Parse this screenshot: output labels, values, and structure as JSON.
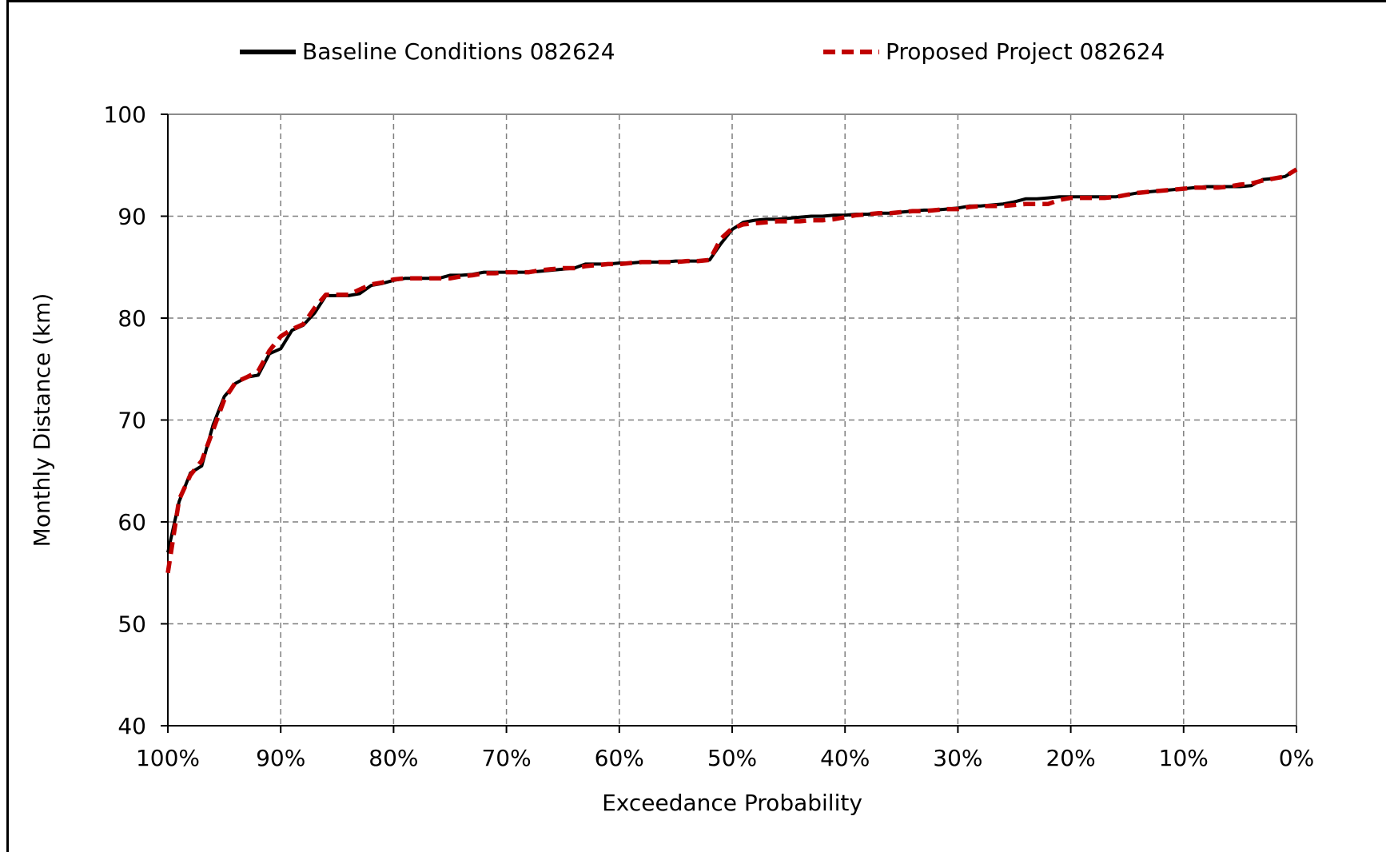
{
  "chart_data": {
    "type": "line",
    "title": "",
    "xlabel": "Exceedance Probability",
    "ylabel": "Monthly Distance (km)",
    "xlim": [
      100,
      0
    ],
    "ylim": [
      40,
      100
    ],
    "x_reversed": true,
    "grid": true,
    "legend_position": "top",
    "xticks": [
      100,
      90,
      80,
      70,
      60,
      50,
      40,
      30,
      20,
      10,
      0
    ],
    "xtick_labels": [
      "100%",
      "90%",
      "80%",
      "70%",
      "60%",
      "50%",
      "40%",
      "30%",
      "20%",
      "10%",
      "0%"
    ],
    "yticks": [
      40,
      50,
      60,
      70,
      80,
      90,
      100
    ],
    "ytick_labels": [
      "40",
      "50",
      "60",
      "70",
      "80",
      "90",
      "100"
    ],
    "series": [
      {
        "name": "Baseline Conditions 082624",
        "color": "#000000",
        "style": "solid",
        "x": [
          100,
          99,
          98,
          97,
          96,
          95,
          94,
          93,
          92,
          91,
          90,
          89,
          88,
          87,
          86,
          85,
          84,
          83,
          82,
          81,
          80,
          79,
          78,
          77,
          76,
          75,
          74,
          73,
          72,
          71,
          70,
          69,
          68,
          67,
          66,
          65,
          64,
          63,
          62,
          61,
          60,
          59,
          58,
          57,
          56,
          55,
          54,
          53,
          52,
          51,
          50,
          49,
          48,
          47,
          46,
          45,
          44,
          43,
          42,
          41,
          40,
          39,
          38,
          37,
          36,
          35,
          34,
          33,
          32,
          31,
          30,
          29,
          28,
          27,
          26,
          25,
          24,
          23,
          22,
          21,
          20,
          19,
          18,
          17,
          16,
          15,
          14,
          13,
          12,
          11,
          10,
          9,
          8,
          7,
          6,
          5,
          4,
          3,
          2,
          1,
          0
        ],
        "y": [
          57.0,
          62.0,
          64.8,
          65.5,
          69.5,
          72.3,
          73.6,
          74.2,
          74.4,
          76.5,
          77.0,
          78.8,
          79.3,
          80.5,
          82.2,
          82.2,
          82.2,
          82.4,
          83.2,
          83.4,
          83.7,
          83.9,
          83.9,
          83.9,
          83.9,
          84.2,
          84.2,
          84.3,
          84.5,
          84.5,
          84.5,
          84.5,
          84.5,
          84.6,
          84.7,
          84.8,
          84.9,
          85.3,
          85.3,
          85.3,
          85.4,
          85.4,
          85.5,
          85.5,
          85.5,
          85.6,
          85.6,
          85.6,
          85.7,
          87.3,
          88.7,
          89.4,
          89.6,
          89.7,
          89.7,
          89.8,
          89.9,
          90.0,
          90.0,
          90.1,
          90.1,
          90.2,
          90.2,
          90.3,
          90.3,
          90.4,
          90.5,
          90.6,
          90.6,
          90.7,
          90.8,
          91.0,
          91.0,
          91.1,
          91.2,
          91.4,
          91.7,
          91.7,
          91.8,
          91.9,
          91.9,
          91.9,
          91.9,
          91.9,
          91.9,
          92.1,
          92.3,
          92.4,
          92.5,
          92.6,
          92.7,
          92.8,
          92.9,
          92.9,
          92.9,
          92.9,
          93.0,
          93.6,
          93.7,
          93.9,
          94.6
        ]
      },
      {
        "name": "Proposed Project 082624",
        "color": "#c00000",
        "style": "dashed",
        "x": [
          100,
          99,
          98,
          97,
          96,
          95,
          94,
          93,
          92,
          91,
          90,
          89,
          88,
          87,
          86,
          85,
          84,
          83,
          82,
          81,
          80,
          79,
          78,
          77,
          76,
          75,
          74,
          73,
          72,
          71,
          70,
          69,
          68,
          67,
          66,
          65,
          64,
          63,
          62,
          61,
          60,
          59,
          58,
          57,
          56,
          55,
          54,
          53,
          52,
          51,
          50,
          49,
          48,
          47,
          46,
          45,
          44,
          43,
          42,
          41,
          40,
          39,
          38,
          37,
          36,
          35,
          34,
          33,
          32,
          31,
          30,
          29,
          28,
          27,
          26,
          25,
          24,
          23,
          22,
          21,
          20,
          19,
          18,
          17,
          16,
          15,
          14,
          13,
          12,
          11,
          10,
          9,
          8,
          7,
          6,
          5,
          4,
          3,
          2,
          1,
          0
        ],
        "y": [
          55.0,
          62.2,
          64.6,
          66.0,
          69.0,
          72.0,
          73.7,
          74.2,
          74.8,
          76.8,
          78.2,
          78.9,
          79.4,
          81.0,
          82.3,
          82.3,
          82.3,
          82.8,
          83.3,
          83.5,
          83.8,
          83.9,
          83.9,
          83.9,
          83.9,
          83.9,
          84.1,
          84.2,
          84.4,
          84.4,
          84.5,
          84.5,
          84.5,
          84.7,
          84.8,
          84.9,
          84.9,
          85.1,
          85.2,
          85.3,
          85.3,
          85.4,
          85.5,
          85.5,
          85.5,
          85.5,
          85.6,
          85.6,
          85.7,
          87.8,
          88.8,
          89.2,
          89.3,
          89.4,
          89.5,
          89.5,
          89.5,
          89.6,
          89.6,
          89.7,
          89.9,
          90.1,
          90.2,
          90.3,
          90.3,
          90.4,
          90.5,
          90.5,
          90.6,
          90.7,
          90.7,
          90.9,
          91.0,
          91.0,
          91.0,
          91.1,
          91.2,
          91.2,
          91.2,
          91.6,
          91.8,
          91.8,
          91.8,
          91.8,
          91.9,
          92.1,
          92.3,
          92.4,
          92.5,
          92.6,
          92.7,
          92.8,
          92.8,
          92.8,
          92.9,
          93.1,
          93.2,
          93.5,
          93.7,
          93.9,
          94.6
        ]
      }
    ]
  }
}
